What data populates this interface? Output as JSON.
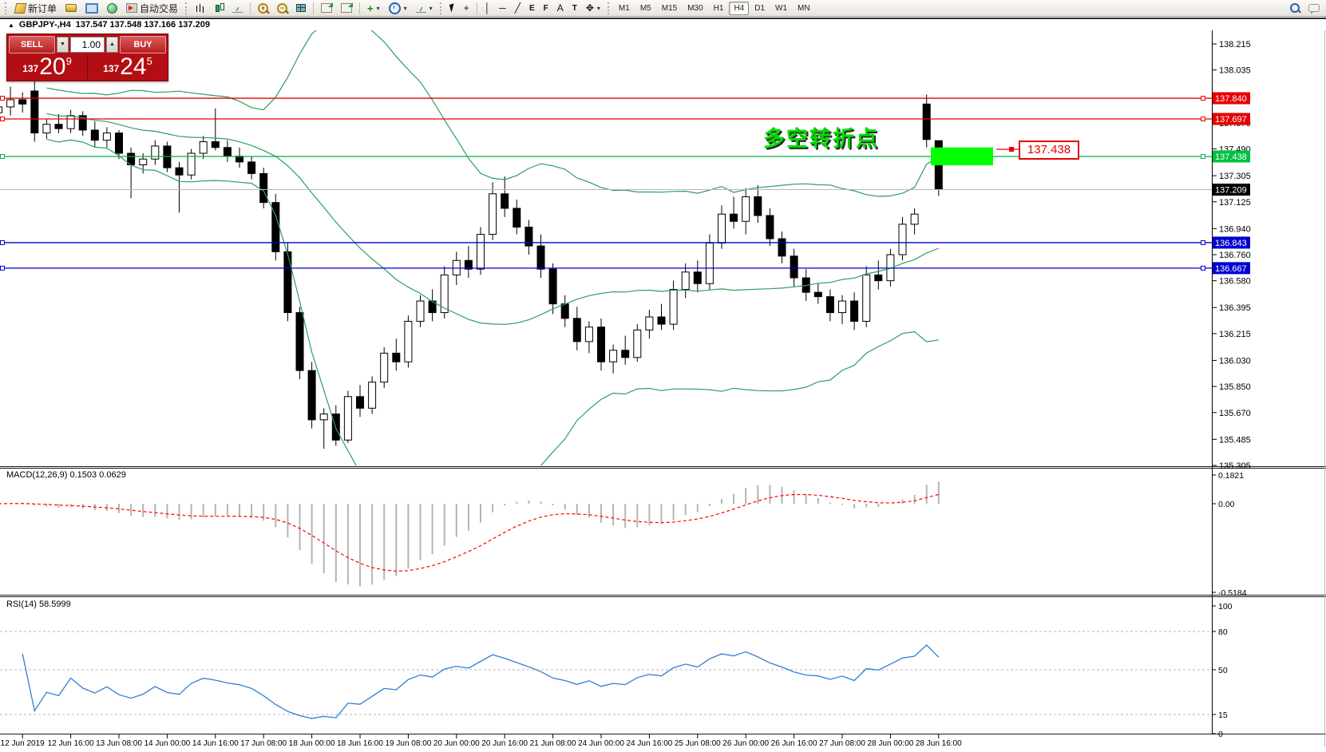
{
  "toolbar": {
    "new_order": "新订单",
    "autotrading": "自动交易",
    "timeframes": [
      "M1",
      "M5",
      "M15",
      "M30",
      "H1",
      "H4",
      "D1",
      "W1",
      "MN"
    ],
    "active_timeframe": "H4",
    "glyphs": {
      "caret": "▾",
      "crosshair": "+",
      "vline": "│",
      "hline": "─",
      "trend": "╱",
      "channel": "E",
      "fibo": "F",
      "text": "A",
      "label": "T",
      "arrows": "✥",
      "zoom_in": "+",
      "zoom_out": "−",
      "indicators_plus": "+"
    }
  },
  "symbol_bar": {
    "collapse_arrow": "▲",
    "title": "GBPJPY-,H4",
    "ohlc": "137.547 137.548 137.166 137.209"
  },
  "order_panel": {
    "sell_label": "SELL",
    "buy_label": "BUY",
    "volume": "1.00",
    "down_glyph": "▼",
    "up_glyph": "▲",
    "sell_prefix": "137",
    "sell_big": "20",
    "sell_sup": "9",
    "buy_prefix": "137",
    "buy_big": "24",
    "buy_sup": "5"
  },
  "annotation": {
    "text": "多空转折点",
    "color": "#00dd00"
  },
  "price_label_box": {
    "text": "137.438"
  },
  "panes": {
    "macd_label": "MACD(12,26,9)",
    "macd_values": "0.1503 0.0629",
    "rsi_label": "RSI(14)",
    "rsi_value": "58.5999"
  },
  "chart_data": {
    "type": "candlestick",
    "symbol": "GBPJPY-",
    "timeframe": "H4",
    "title_ohlc": "137.547 137.548 137.166 137.209",
    "ylim": [
      135.305,
      138.215
    ],
    "y_ticks": [
      138.215,
      138.035,
      137.855,
      137.67,
      137.49,
      137.305,
      137.125,
      136.94,
      136.76,
      136.58,
      136.395,
      136.215,
      136.03,
      135.85,
      135.67,
      135.485,
      135.305
    ],
    "x_tick_labels": [
      "12 Jun 2019",
      "12 Jun 16:00",
      "13 Jun 08:00",
      "14 Jun 00:00",
      "14 Jun 16:00",
      "17 Jun 08:00",
      "18 Jun 00:00",
      "18 Jun 16:00",
      "19 Jun 08:00",
      "20 Jun 00:00",
      "20 Jun 16:00",
      "21 Jun 08:00",
      "24 Jun 00:00",
      "24 Jun 16:00",
      "25 Jun 08:00",
      "26 Jun 00:00",
      "26 Jun 16:00",
      "27 Jun 08:00",
      "28 Jun 00:00",
      "28 Jun 16:00"
    ],
    "candles": [
      [
        137.74,
        137.9,
        137.66,
        137.78
      ],
      [
        137.78,
        137.92,
        137.72,
        137.83
      ],
      [
        137.83,
        137.88,
        137.74,
        137.8
      ],
      [
        137.89,
        137.96,
        137.54,
        137.6
      ],
      [
        137.6,
        137.7,
        137.56,
        137.66
      ],
      [
        137.66,
        137.73,
        137.6,
        137.63
      ],
      [
        137.63,
        137.76,
        137.6,
        137.72
      ],
      [
        137.72,
        137.75,
        137.58,
        137.62
      ],
      [
        137.62,
        137.68,
        137.5,
        137.55
      ],
      [
        137.55,
        137.64,
        137.5,
        137.6
      ],
      [
        137.6,
        137.62,
        137.42,
        137.46
      ],
      [
        137.46,
        137.5,
        137.15,
        137.38
      ],
      [
        137.38,
        137.46,
        137.32,
        137.42
      ],
      [
        137.42,
        137.55,
        137.38,
        137.51
      ],
      [
        137.51,
        137.54,
        137.33,
        137.36
      ],
      [
        137.36,
        137.4,
        137.05,
        137.31
      ],
      [
        137.31,
        137.49,
        137.28,
        137.46
      ],
      [
        137.46,
        137.58,
        137.42,
        137.54
      ],
      [
        137.54,
        137.77,
        137.48,
        137.5
      ],
      [
        137.5,
        137.55,
        137.4,
        137.44
      ],
      [
        137.44,
        137.5,
        137.36,
        137.4
      ],
      [
        137.4,
        137.44,
        137.28,
        137.32
      ],
      [
        137.32,
        137.36,
        137.08,
        137.12
      ],
      [
        137.12,
        137.18,
        136.72,
        136.78
      ],
      [
        136.78,
        136.84,
        136.3,
        136.36
      ],
      [
        136.36,
        136.4,
        135.9,
        135.96
      ],
      [
        135.96,
        136.02,
        135.56,
        135.62
      ],
      [
        135.62,
        135.7,
        135.42,
        135.66
      ],
      [
        135.66,
        135.72,
        135.44,
        135.48
      ],
      [
        135.48,
        135.82,
        135.46,
        135.78
      ],
      [
        135.78,
        135.86,
        135.64,
        135.7
      ],
      [
        135.7,
        135.92,
        135.66,
        135.88
      ],
      [
        135.88,
        136.12,
        135.84,
        136.08
      ],
      [
        136.08,
        136.18,
        135.96,
        136.02
      ],
      [
        136.02,
        136.34,
        135.98,
        136.3
      ],
      [
        136.3,
        136.48,
        136.26,
        136.44
      ],
      [
        136.44,
        136.52,
        136.3,
        136.36
      ],
      [
        136.36,
        136.68,
        136.32,
        136.62
      ],
      [
        136.62,
        136.78,
        136.55,
        136.72
      ],
      [
        136.72,
        136.82,
        136.6,
        136.66
      ],
      [
        136.66,
        136.95,
        136.62,
        136.9
      ],
      [
        136.9,
        137.26,
        136.86,
        137.18
      ],
      [
        137.18,
        137.3,
        137.02,
        137.08
      ],
      [
        137.08,
        137.14,
        136.9,
        136.95
      ],
      [
        136.95,
        137.0,
        136.76,
        136.82
      ],
      [
        136.82,
        136.9,
        136.6,
        136.66
      ],
      [
        136.66,
        136.7,
        136.35,
        136.42
      ],
      [
        136.42,
        136.48,
        136.26,
        136.32
      ],
      [
        136.32,
        136.4,
        136.1,
        136.16
      ],
      [
        136.16,
        136.3,
        136.08,
        136.26
      ],
      [
        136.26,
        136.32,
        135.96,
        136.02
      ],
      [
        136.02,
        136.14,
        135.94,
        136.1
      ],
      [
        136.1,
        136.2,
        136.0,
        136.05
      ],
      [
        136.05,
        136.28,
        136.02,
        136.24
      ],
      [
        136.24,
        136.38,
        136.18,
        136.33
      ],
      [
        136.33,
        136.42,
        136.24,
        136.28
      ],
      [
        136.28,
        136.58,
        136.24,
        136.52
      ],
      [
        136.52,
        136.7,
        136.46,
        136.64
      ],
      [
        136.64,
        136.72,
        136.5,
        136.56
      ],
      [
        136.56,
        136.9,
        136.52,
        136.84
      ],
      [
        136.84,
        137.1,
        136.8,
        137.04
      ],
      [
        137.04,
        137.16,
        136.94,
        136.99
      ],
      [
        136.99,
        137.22,
        136.9,
        137.16
      ],
      [
        137.16,
        137.24,
        136.98,
        137.03
      ],
      [
        137.03,
        137.08,
        136.82,
        136.87
      ],
      [
        136.87,
        136.92,
        136.7,
        136.75
      ],
      [
        136.75,
        136.8,
        136.54,
        136.6
      ],
      [
        136.6,
        136.66,
        136.44,
        136.5
      ],
      [
        136.5,
        136.56,
        136.42,
        136.47
      ],
      [
        136.47,
        136.52,
        136.3,
        136.36
      ],
      [
        136.36,
        136.48,
        136.28,
        136.44
      ],
      [
        136.44,
        136.5,
        136.24,
        136.3
      ],
      [
        136.3,
        136.68,
        136.26,
        136.62
      ],
      [
        136.62,
        136.72,
        136.52,
        136.58
      ],
      [
        136.58,
        136.8,
        136.54,
        136.76
      ],
      [
        136.76,
        137.02,
        136.72,
        136.97
      ],
      [
        136.97,
        137.08,
        136.9,
        137.04
      ],
      [
        137.8,
        137.865,
        137.5,
        137.555
      ],
      [
        137.547,
        137.548,
        137.166,
        137.209
      ]
    ],
    "price_lines": [
      {
        "price": 137.84,
        "color": "#e60000"
      },
      {
        "price": 137.697,
        "color": "#e60000"
      },
      {
        "price": 137.438,
        "color": "#00b050"
      },
      {
        "price": 136.843,
        "color": "#0000d0"
      },
      {
        "price": 136.667,
        "color": "#0000d0"
      }
    ],
    "current_price": {
      "price": 137.209,
      "line_color": "#b8b8b8",
      "tag_bg": "#000000"
    },
    "highlight_rect": {
      "price_top": 137.5,
      "price_bottom": 137.377,
      "color": "#00ff00"
    },
    "bollinger": {
      "period": 20,
      "deviation": 2,
      "color": "#2e9e5b"
    },
    "macd": {
      "params": "12,26,9",
      "value": 0.1503,
      "signal_value": 0.0629,
      "axis_max": 0.1821,
      "axis_zero": 0.0,
      "axis_min": -0.5184,
      "hist_color": "#b4b4b4",
      "signal_color": "#ff0000"
    },
    "rsi": {
      "period": 14,
      "value": 58.5999,
      "levels": [
        80,
        50,
        15
      ],
      "axis": [
        100,
        80,
        50,
        15,
        0
      ],
      "color": "#2e7fd4"
    }
  }
}
